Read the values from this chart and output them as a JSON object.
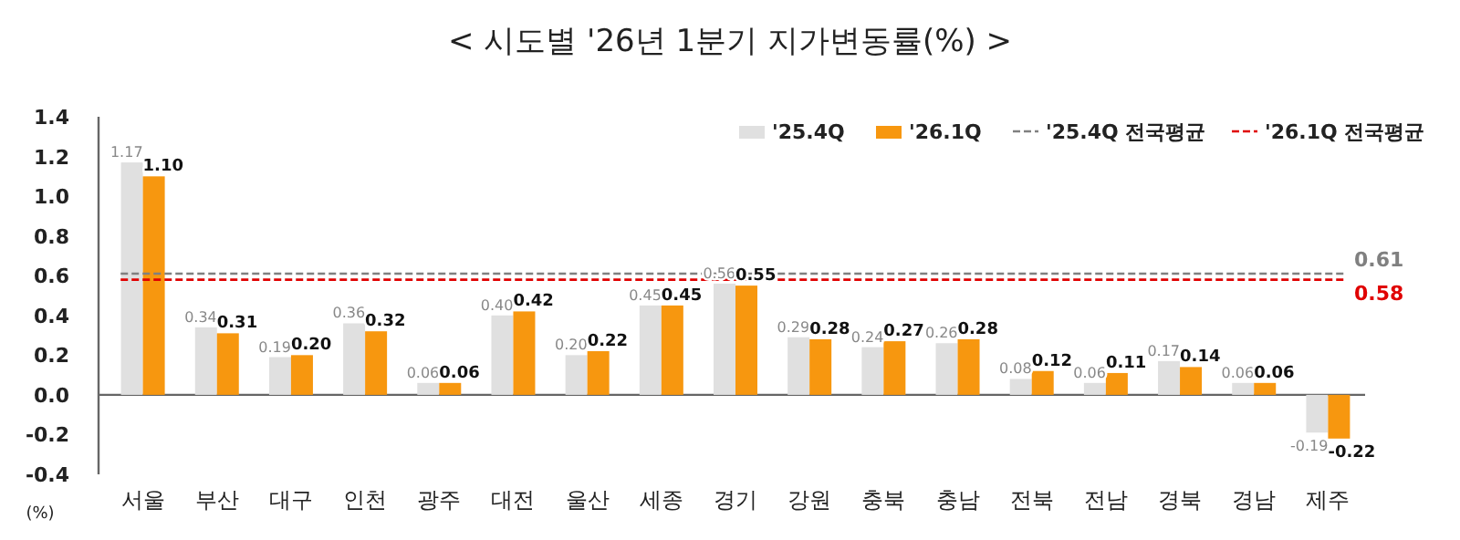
{
  "chart_data": {
    "type": "bar",
    "title": "< 시도별 '26년 1분기 지가변동률(%) >",
    "ylabel": "(%)",
    "categories": [
      "서울",
      "부산",
      "대구",
      "인천",
      "광주",
      "대전",
      "울산",
      "세종",
      "경기",
      "강원",
      "충북",
      "충남",
      "전북",
      "전남",
      "경북",
      "경남",
      "제주"
    ],
    "series": [
      {
        "name": "'25.4Q",
        "color": "#e0e0e0",
        "values": [
          1.17,
          0.34,
          0.19,
          0.36,
          0.06,
          0.4,
          0.2,
          0.45,
          0.56,
          0.29,
          0.24,
          0.26,
          0.08,
          0.06,
          0.17,
          0.06,
          -0.19
        ],
        "value_labels": [
          "1.17",
          "0.34",
          "0.19",
          "0.36",
          "0.06",
          "0.40",
          "0.20",
          "0.45",
          "0.56",
          "0.29",
          "0.24",
          "0.26",
          "0.08",
          "0.06",
          "0.17",
          "0.06",
          "-0.19"
        ]
      },
      {
        "name": "'26.1Q",
        "color": "#f7970f",
        "values": [
          1.1,
          0.31,
          0.2,
          0.32,
          0.06,
          0.42,
          0.22,
          0.45,
          0.55,
          0.28,
          0.27,
          0.28,
          0.12,
          0.11,
          0.14,
          0.06,
          -0.22
        ],
        "value_labels": [
          "1.10",
          "0.31",
          "0.20",
          "0.32",
          "0.06",
          "0.42",
          "0.22",
          "0.45",
          "0.55",
          "0.28",
          "0.27",
          "0.28",
          "0.12",
          "0.11",
          "0.14",
          "0.06",
          "-0.22"
        ]
      }
    ],
    "ref_lines": [
      {
        "axis": "y",
        "value": 0.61,
        "label": "'25.4Q 전국평균",
        "color": "#808080",
        "line_style": "dashed"
      },
      {
        "axis": "y",
        "value": 0.58,
        "label": "'26.1Q 전국평균",
        "color": "#e00000",
        "line_style": "dashed"
      }
    ],
    "annotations": [
      "0.61",
      "0.58"
    ],
    "ylim": [
      -0.4,
      1.4
    ],
    "yticks": [
      {
        "value": -0.4,
        "label": "-0.4"
      },
      {
        "value": -0.2,
        "label": "-0.2"
      },
      {
        "value": 0,
        "label": "0.0"
      },
      {
        "value": 0.2,
        "label": "0.2"
      },
      {
        "value": 0.4,
        "label": "0.4"
      },
      {
        "value": 0.6,
        "label": "0.6"
      },
      {
        "value": 0.8,
        "label": "0.8"
      },
      {
        "value": 1.0,
        "label": "1.0"
      },
      {
        "value": 1.2,
        "label": "1.2"
      },
      {
        "value": 1.4,
        "label": "1.4"
      }
    ],
    "legend": "top right",
    "grid": false
  }
}
